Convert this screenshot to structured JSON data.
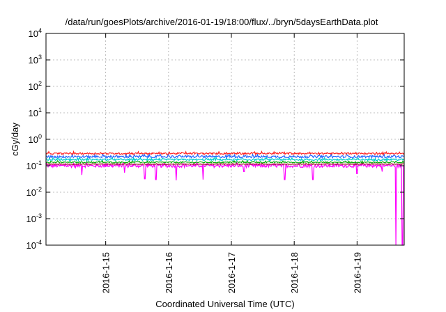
{
  "chart_data": {
    "type": "line",
    "title": "/data/run/goesPlots/archive/2016-01-19/18:00/flux/../bryn/5daysEarthData.plot",
    "xlabel": "Coordinated Universal Time (UTC)",
    "ylabel": "cGy/day",
    "yscale": "log",
    "ylim": [
      0.0001,
      10000
    ],
    "xlim": [
      14.05,
      19.75
    ],
    "grid": true,
    "yticks": [
      {
        "value": 0.0001,
        "base": "10",
        "exp": "-4"
      },
      {
        "value": 0.001,
        "base": "10",
        "exp": "-3"
      },
      {
        "value": 0.01,
        "base": "10",
        "exp": "-2"
      },
      {
        "value": 0.1,
        "base": "10",
        "exp": "-1"
      },
      {
        "value": 1,
        "base": "10",
        "exp": "0"
      },
      {
        "value": 10,
        "base": "10",
        "exp": "1"
      },
      {
        "value": 100,
        "base": "10",
        "exp": "2"
      },
      {
        "value": 1000,
        "base": "10",
        "exp": "3"
      },
      {
        "value": 10000,
        "base": "10",
        "exp": "4"
      }
    ],
    "xticks": [
      {
        "value": 15,
        "label": "2016-1-15"
      },
      {
        "value": 16,
        "label": "2016-1-16"
      },
      {
        "value": 17,
        "label": "2016-1-17"
      },
      {
        "value": 18,
        "label": "2016-1-18"
      },
      {
        "value": 19,
        "label": "2016-1-19"
      }
    ],
    "series": [
      {
        "color": "#ff00ff",
        "base": 0.1,
        "noise": 0.14,
        "dips": [
          [
            14.62,
            0.045
          ],
          [
            15.3,
            0.055
          ],
          [
            15.62,
            0.032
          ],
          [
            15.8,
            0.03
          ],
          [
            16.12,
            0.028
          ],
          [
            16.55,
            0.03
          ],
          [
            17.2,
            0.06
          ],
          [
            17.85,
            0.03
          ],
          [
            18.3,
            0.03
          ],
          [
            19.0,
            0.05
          ],
          [
            19.4,
            0.06
          ],
          [
            19.62,
            0.0001
          ],
          [
            19.72,
            0.0001
          ]
        ]
      },
      {
        "color": "#00aa00",
        "base": 0.135,
        "noise": 0.06,
        "dips": []
      },
      {
        "color": "#00cccc",
        "base": 0.17,
        "noise": 0.08,
        "dips": []
      },
      {
        "color": "#2266ff",
        "base": 0.22,
        "noise": 0.1,
        "dips": []
      },
      {
        "color": "#ff2222",
        "base": 0.29,
        "noise": 0.07,
        "dips": []
      },
      {
        "color": "#8b0000",
        "base": 0.115,
        "noise": 0.02,
        "dips": []
      }
    ]
  }
}
